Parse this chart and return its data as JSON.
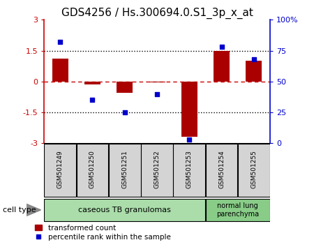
{
  "title": "GDS4256 / Hs.300694.0.S1_3p_x_at",
  "samples": [
    "GSM501249",
    "GSM501250",
    "GSM501251",
    "GSM501252",
    "GSM501253",
    "GSM501254",
    "GSM501255"
  ],
  "transformed_count": [
    1.1,
    -0.15,
    -0.55,
    -0.05,
    -2.7,
    1.5,
    1.0
  ],
  "percentile_rank": [
    82,
    35,
    25,
    40,
    3,
    78,
    68
  ],
  "ylim_left": [
    -3,
    3
  ],
  "ylim_right": [
    0,
    100
  ],
  "yticks_left": [
    -3,
    -1.5,
    0,
    1.5,
    3
  ],
  "yticks_right": [
    0,
    25,
    50,
    75,
    100
  ],
  "ytick_labels_left": [
    "-3",
    "-1.5",
    "0",
    "1.5",
    "3"
  ],
  "ytick_labels_right": [
    "0",
    "25",
    "50",
    "75",
    "100%"
  ],
  "hlines_dotted": [
    -1.5,
    1.5
  ],
  "hline_dashed": 0,
  "bar_color": "#aa0000",
  "dot_color": "#0000cc",
  "cell_type_groups": [
    {
      "label": "caseous TB granulomas",
      "span": [
        0,
        4
      ],
      "color": "#aaddaa"
    },
    {
      "label": "normal lung\nparenchyma",
      "span": [
        5,
        6
      ],
      "color": "#88cc88"
    }
  ],
  "cell_type_label": "cell type",
  "legend_bar_label": "transformed count",
  "legend_dot_label": "percentile rank within the sample",
  "title_fontsize": 11,
  "tick_fontsize": 8,
  "label_fontsize": 7,
  "bg_color": "#d4d4d4"
}
